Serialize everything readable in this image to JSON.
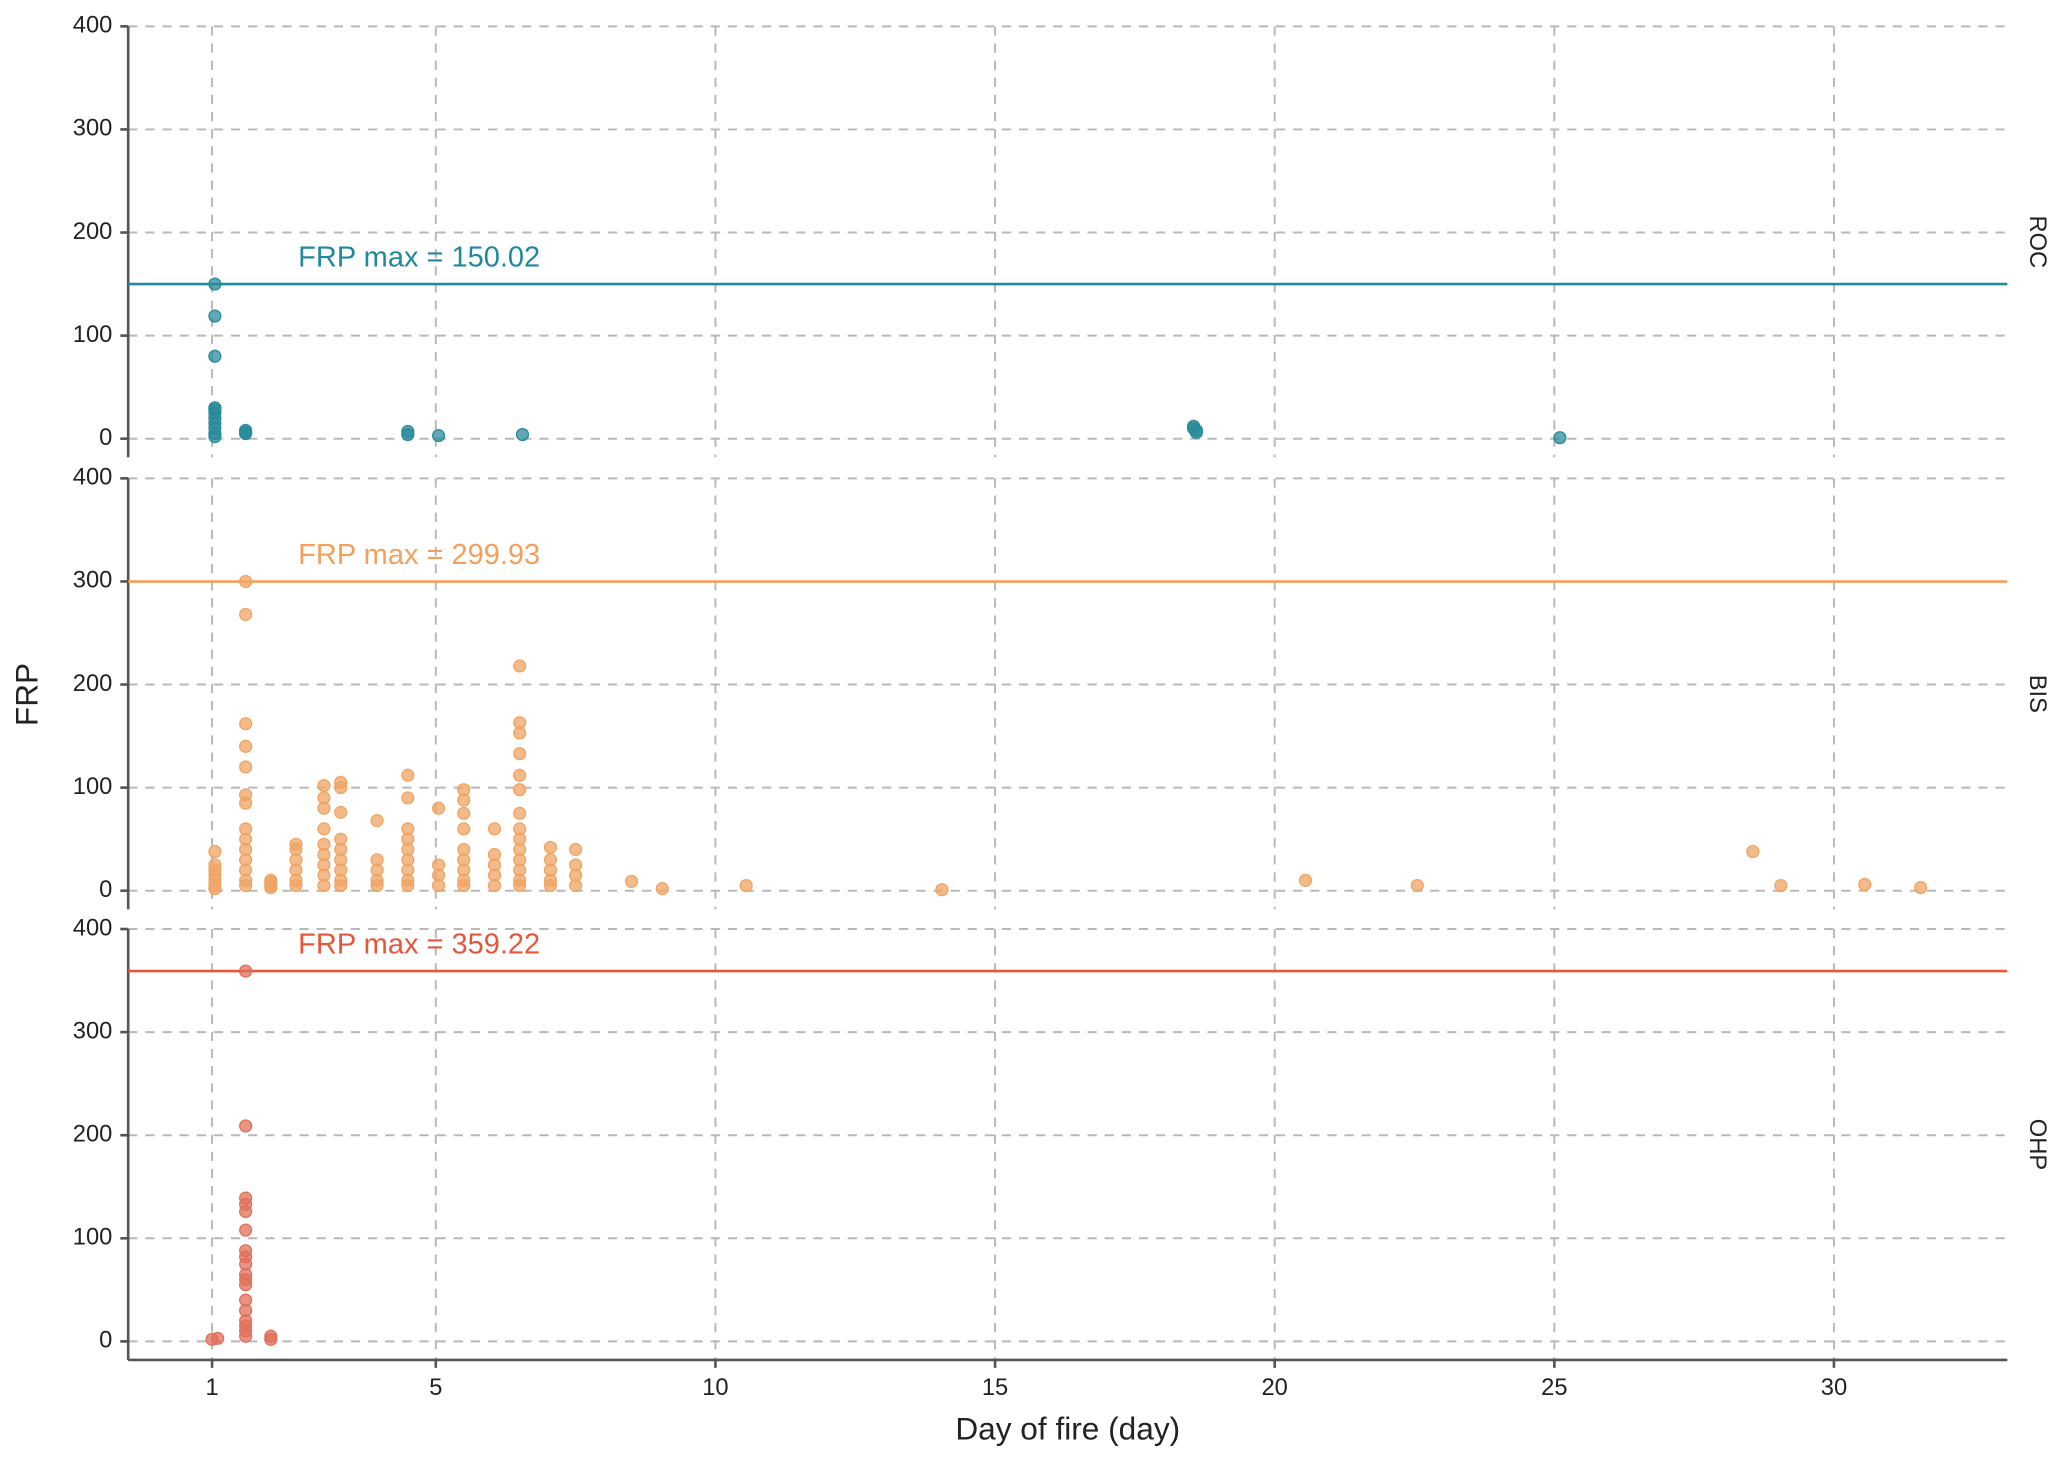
{
  "chart_data": {
    "type": "scatter",
    "xlabel": "Day of fire (day)",
    "ylabel": "FRP",
    "xlim": [
      -0.5,
      33.1
    ],
    "xticks": [
      1,
      5,
      10,
      15,
      20,
      25,
      30
    ],
    "grid": true,
    "panels": [
      {
        "name": "ROC",
        "color": "#2a8b9b",
        "line_color": "#1f89a0",
        "ylim": [
          -18,
          400
        ],
        "yticks": [
          0,
          100,
          200,
          300,
          400
        ],
        "max_value": 150.02,
        "annotation": "FRP max = 150.02",
        "x": [
          1.05,
          1.05,
          1.05,
          1.05,
          1.05,
          1.05,
          1.05,
          1.05,
          1.05,
          1.05,
          1.05,
          1.6,
          1.6,
          1.6,
          4.5,
          4.5,
          5.05,
          6.55,
          18.55,
          18.6,
          18.55,
          18.6,
          25.1
        ],
        "y": [
          150.02,
          119,
          80,
          30,
          28,
          25,
          20,
          15,
          10,
          5,
          2,
          8,
          6,
          5,
          7,
          4,
          3,
          4,
          10,
          8,
          12,
          6,
          1
        ]
      },
      {
        "name": "BIS",
        "color": "#f0a463",
        "line_color": "#f2a05c",
        "ylim": [
          -18,
          400
        ],
        "yticks": [
          0,
          100,
          200,
          300,
          400
        ],
        "max_value": 299.93,
        "annotation": "FRP max = 299.93",
        "x": [
          1.05,
          1.05,
          1.05,
          1.05,
          1.05,
          1.05,
          1.05,
          1.6,
          1.6,
          1.6,
          1.6,
          1.6,
          1.6,
          1.6,
          1.6,
          1.6,
          1.6,
          1.6,
          1.6,
          1.6,
          1.6,
          2.05,
          2.05,
          2.05,
          2.05,
          2.5,
          2.5,
          2.5,
          2.5,
          2.5,
          2.5,
          3,
          3,
          3,
          3,
          3,
          3,
          3,
          3,
          3,
          3.3,
          3.3,
          3.3,
          3.3,
          3.3,
          3.3,
          3.3,
          3.3,
          3.3,
          3.95,
          3.95,
          3.95,
          3.95,
          3.95,
          4.5,
          4.5,
          4.5,
          4.5,
          4.5,
          4.5,
          4.5,
          4.5,
          4.5,
          5.05,
          5.05,
          5.05,
          5.05,
          5.5,
          5.5,
          5.5,
          5.5,
          5.5,
          5.5,
          5.5,
          5.5,
          5.5,
          6.05,
          6.05,
          6.05,
          6.05,
          6.05,
          6.5,
          6.5,
          6.5,
          6.5,
          6.5,
          6.5,
          6.5,
          6.5,
          6.5,
          6.5,
          6.5,
          6.5,
          6.5,
          6.5,
          7.05,
          7.05,
          7.05,
          7.05,
          7.05,
          7.5,
          7.5,
          7.5,
          7.5,
          8.5,
          9.05,
          10.55,
          14.05,
          20.55,
          22.55,
          28.55,
          29.05,
          30.55,
          31.55
        ],
        "y": [
          38,
          25,
          20,
          15,
          10,
          5,
          2,
          299.93,
          268,
          162,
          140,
          120,
          93,
          85,
          60,
          50,
          40,
          30,
          20,
          10,
          5,
          10,
          8,
          5,
          3,
          45,
          40,
          30,
          20,
          10,
          5,
          102,
          90,
          80,
          60,
          45,
          35,
          25,
          15,
          5,
          105,
          100,
          76,
          50,
          40,
          30,
          20,
          10,
          5,
          68,
          30,
          20,
          10,
          5,
          112,
          90,
          60,
          50,
          40,
          30,
          20,
          10,
          5,
          80,
          25,
          15,
          5,
          98,
          88,
          75,
          60,
          40,
          30,
          20,
          10,
          5,
          60,
          35,
          25,
          15,
          5,
          218,
          163,
          153,
          133,
          112,
          98,
          75,
          60,
          50,
          40,
          30,
          20,
          10,
          5,
          42,
          30,
          20,
          10,
          5,
          40,
          25,
          15,
          5,
          9,
          2,
          5,
          1,
          10,
          5,
          38,
          5,
          6,
          3
        ]
      },
      {
        "name": "OHP",
        "color": "#e0705b",
        "line_color": "#e4573c",
        "ylim": [
          -18,
          400
        ],
        "yticks": [
          0,
          100,
          200,
          300,
          400
        ],
        "max_value": 359.22,
        "annotation": "FRP max = 359.22",
        "x": [
          1.0,
          1.1,
          1.6,
          1.6,
          1.6,
          1.6,
          1.6,
          1.6,
          1.6,
          1.6,
          1.6,
          1.6,
          1.6,
          1.6,
          1.6,
          1.6,
          1.6,
          1.6,
          1.6,
          1.6,
          2.05,
          2.05
        ],
        "y": [
          2,
          3,
          359.22,
          209,
          139,
          133,
          126,
          108,
          88,
          82,
          75,
          65,
          60,
          55,
          40,
          30,
          20,
          15,
          10,
          5,
          5,
          2
        ]
      }
    ]
  }
}
